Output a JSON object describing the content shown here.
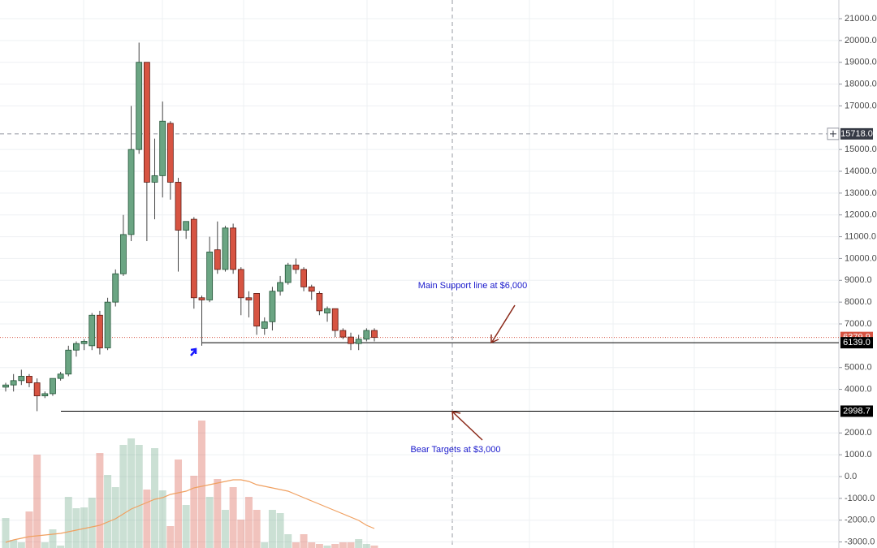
{
  "chart_data": {
    "type": "candlestick",
    "ylim": [
      -3277,
      21857
    ],
    "yticks": [
      {
        "value": 21000,
        "label": "21000.0"
      },
      {
        "value": 20000,
        "label": "20000.0"
      },
      {
        "value": 19000,
        "label": "19000.0"
      },
      {
        "value": 18000,
        "label": "18000.0"
      },
      {
        "value": 17000,
        "label": "17000.0"
      },
      {
        "value": 15000,
        "label": "15000.0"
      },
      {
        "value": 14000,
        "label": "14000.0"
      },
      {
        "value": 13000,
        "label": "13000.0"
      },
      {
        "value": 12000,
        "label": "12000.0"
      },
      {
        "value": 11000,
        "label": "11000.0"
      },
      {
        "value": 10000,
        "label": "10000.0"
      },
      {
        "value": 9000,
        "label": "9000.0"
      },
      {
        "value": 8000,
        "label": "8000.0"
      },
      {
        "value": 7000,
        "label": "7000.0"
      },
      {
        "value": 5000,
        "label": "5000.0"
      },
      {
        "value": 4000,
        "label": "4000.0"
      },
      {
        "value": 2000,
        "label": "2000.0"
      },
      {
        "value": 1000,
        "label": "1000.0"
      },
      {
        "value": 0,
        "label": "0.0"
      },
      {
        "value": -1000,
        "label": "-1000.0"
      },
      {
        "value": -2000,
        "label": "-2000.0"
      },
      {
        "value": -3000,
        "label": "-3000.0"
      }
    ],
    "grid": true,
    "up_color": "#6ba583",
    "down_color": "#d75442",
    "candles": {
      "open": [
        4100,
        4200,
        4400,
        4600,
        4300,
        3700,
        3800,
        4500,
        4700,
        5800,
        6100,
        6000,
        7400,
        5900,
        8000,
        9300,
        11100,
        15000,
        19000,
        13500,
        13800,
        16200,
        13500,
        11300,
        11800,
        8200,
        8100,
        10400,
        9500,
        11400,
        9500,
        8200,
        8400,
        6800,
        7100,
        8500,
        8900,
        9700,
        9500,
        8700,
        8400,
        7500,
        7700,
        6700,
        6400,
        6100,
        6300,
        6700
      ],
      "high": [
        4300,
        4700,
        4900,
        4700,
        4500,
        3900,
        4500,
        4800,
        6000,
        6200,
        6300,
        7500,
        7600,
        8200,
        9500,
        12000,
        17000,
        19900,
        19000,
        15500,
        17200,
        16300,
        13700,
        11700,
        11900,
        8300,
        11000,
        11700,
        11500,
        11600,
        9600,
        8500,
        8400,
        7300,
        8700,
        9200,
        9800,
        10000,
        9600,
        8800,
        8500,
        7800,
        7700,
        6800,
        6600,
        6500,
        6800,
        6800
      ],
      "low": [
        3900,
        3900,
        4200,
        4100,
        3000,
        3600,
        3700,
        4400,
        4600,
        5500,
        5800,
        5800,
        5600,
        5800,
        7800,
        9200,
        10800,
        14800,
        10800,
        11800,
        12800,
        12700,
        9400,
        10900,
        7700,
        6000,
        8000,
        9300,
        9400,
        9300,
        7400,
        7300,
        6500,
        6500,
        6700,
        8300,
        8800,
        9300,
        8500,
        8100,
        7400,
        7100,
        6400,
        6300,
        5800,
        5800,
        6200,
        6200
      ],
      "close": [
        4200,
        4400,
        4600,
        4300,
        3700,
        3800,
        4500,
        4700,
        5800,
        6100,
        6200,
        7400,
        5900,
        8000,
        9300,
        11100,
        15000,
        19000,
        13500,
        13800,
        16300,
        13500,
        11300,
        11700,
        8200,
        8100,
        10300,
        9500,
        11400,
        9500,
        8200,
        8100,
        6900,
        7100,
        8500,
        8900,
        9700,
        9500,
        8700,
        8500,
        7600,
        7700,
        6700,
        6400,
        6100,
        6300,
        6700,
        6380
      ]
    },
    "volume": {
      "ylim": [
        0,
        170
      ],
      "values": [
        37,
        10,
        7,
        45,
        115,
        7,
        23,
        3,
        63,
        49,
        50,
        62,
        117,
        90,
        75,
        127,
        135,
        127,
        72,
        123,
        71,
        27,
        109,
        53,
        89,
        157,
        63,
        85,
        47,
        75,
        35,
        63,
        47,
        7,
        47,
        43,
        17,
        7,
        17,
        7,
        5,
        3,
        5,
        7,
        7,
        11,
        5,
        3
      ],
      "ma_color": "#f0a060",
      "ma": [
        7,
        10,
        12,
        14,
        15,
        16,
        17,
        18,
        20,
        22,
        24,
        26,
        28,
        32,
        36,
        42,
        48,
        52,
        56,
        60,
        62,
        66,
        68,
        70,
        74,
        76,
        78,
        80,
        82,
        84,
        84,
        82,
        78,
        76,
        74,
        72,
        70,
        66,
        62,
        58,
        54,
        50,
        46,
        42,
        38,
        34,
        28,
        24
      ]
    },
    "price_lines": [
      {
        "value": 15718,
        "label": "15718.0",
        "color": "#9598a1",
        "style": "dashed",
        "box": "#363a45"
      },
      {
        "value": 6379.9,
        "label": "6379.9",
        "color": "#d75442",
        "style": "dotted",
        "box": "#d75442"
      },
      {
        "value": 6139,
        "label": "6139.0",
        "color": "#000000",
        "style": "solid",
        "box": "#000000"
      },
      {
        "value": 2998.7,
        "label": "2998.7",
        "color": "#000000",
        "style": "solid",
        "box": "#000000"
      }
    ],
    "annotations": [
      {
        "text": "Main Support line at $6,000",
        "color": "#1a1acc"
      },
      {
        "text": "Bear Targets at $3,000",
        "color": "#1a1acc"
      }
    ]
  }
}
